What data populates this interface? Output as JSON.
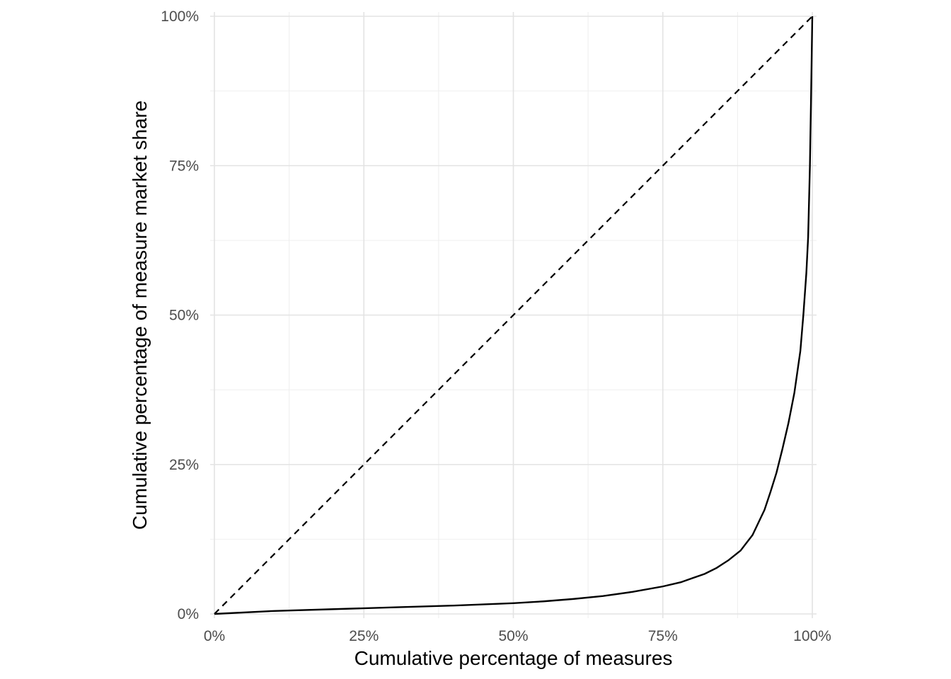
{
  "chart_data": {
    "type": "line",
    "title": "",
    "xlabel": "Cumulative percentage of measures",
    "ylabel": "Cumulative percentage of measure market share",
    "xlim": [
      0,
      100
    ],
    "ylim": [
      0,
      100
    ],
    "x_tick_labels": [
      "0%",
      "25%",
      "50%",
      "75%",
      "100%"
    ],
    "y_tick_labels": [
      "0%",
      "25%",
      "50%",
      "75%",
      "100%"
    ],
    "x_ticks": [
      0,
      25,
      50,
      75,
      100
    ],
    "y_ticks": [
      0,
      25,
      50,
      75,
      100
    ],
    "grid": true,
    "legend": "none",
    "series": [
      {
        "style": "solid",
        "color": "#000000",
        "x": [
          0,
          10,
          20,
          30,
          40,
          50,
          55,
          60,
          65,
          70,
          75,
          78,
          80,
          82,
          84,
          86,
          88,
          90,
          92,
          93,
          94,
          95,
          96,
          97,
          98,
          98.5,
          99,
          99.3,
          99.6,
          99.8,
          100
        ],
        "y": [
          0,
          0.5,
          0.8,
          1.1,
          1.4,
          1.8,
          2.1,
          2.5,
          3.0,
          3.7,
          4.6,
          5.3,
          6.0,
          6.7,
          7.7,
          9.0,
          10.6,
          13.2,
          17.4,
          20.4,
          23.6,
          27.6,
          31.9,
          37.0,
          44.0,
          50.0,
          57.0,
          63.0,
          75.0,
          87.0,
          100
        ]
      },
      {
        "style": "dashed",
        "color": "#000000",
        "x": [
          0,
          100
        ],
        "y": [
          0,
          100
        ]
      }
    ]
  }
}
